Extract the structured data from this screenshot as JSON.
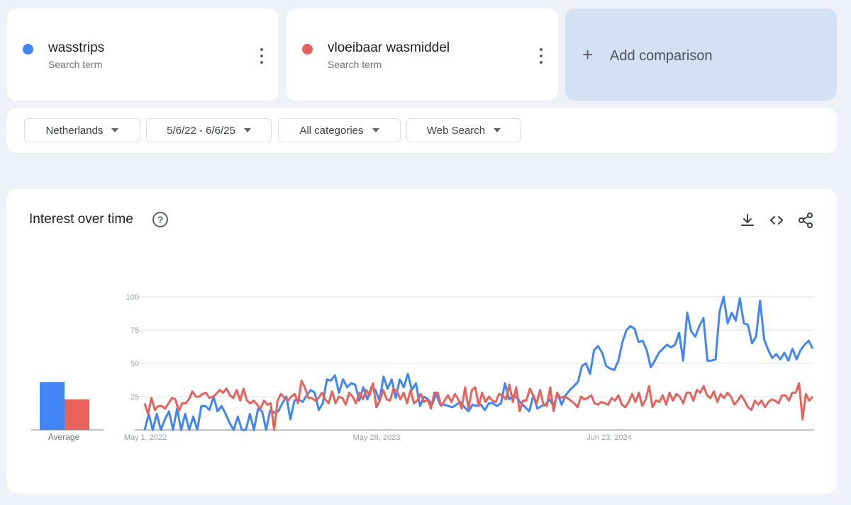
{
  "terms": [
    {
      "name": "wasstrips",
      "type": "Search term",
      "color": "#4285f4"
    },
    {
      "name": "vloeibaar wasmiddel",
      "type": "Search term",
      "color": "#e8625c"
    }
  ],
  "add_comparison": {
    "label": "Add comparison",
    "icon": "plus-icon"
  },
  "filters": {
    "region": "Netherlands",
    "date_range": "5/6/22 - 6/6/25",
    "category": "All categories",
    "search_type": "Web Search"
  },
  "chart_section": {
    "title": "Interest over time",
    "icons": [
      "help-icon",
      "download-icon",
      "embed-icon",
      "share-icon"
    ]
  },
  "chart_data": {
    "type": "line",
    "title": "",
    "xlabel": "",
    "ylabel": "",
    "ylim": [
      0,
      100
    ],
    "yticks": [
      25,
      50,
      75,
      100
    ],
    "xticks": [
      "May 1, 2022",
      "May 28, 2023",
      "Jun 23, 2024"
    ],
    "grid": true,
    "average": {
      "label": "Average",
      "values": [
        {
          "name": "wasstrips",
          "value": 36
        },
        {
          "name": "vloeibaar wasmiddel",
          "value": 23
        }
      ]
    },
    "series": [
      {
        "name": "wasstrips",
        "color": "#4285f4",
        "values": [
          0,
          12,
          0,
          12,
          0,
          8,
          14,
          0,
          16,
          0,
          12,
          0,
          10,
          0,
          18,
          18,
          15,
          25,
          14,
          18,
          12,
          5,
          0,
          10,
          0,
          0,
          12,
          0,
          16,
          14,
          0,
          15,
          13,
          14,
          20,
          25,
          8,
          22,
          23,
          21,
          26,
          30,
          28,
          15,
          20,
          38,
          37,
          41,
          28,
          38,
          32,
          35,
          34,
          22,
          32,
          23,
          32,
          30,
          22,
          40,
          31,
          38,
          24,
          38,
          32,
          42,
          30,
          35,
          18,
          25,
          23,
          19,
          27,
          19,
          19,
          18,
          17,
          19,
          21,
          17,
          14,
          19,
          18,
          19,
          15,
          20,
          20,
          18,
          20,
          35,
          23,
          26,
          24,
          20,
          17,
          14,
          26,
          16,
          18,
          19,
          23,
          18,
          27,
          19,
          26,
          30,
          33,
          36,
          48,
          50,
          42,
          60,
          63,
          58,
          48,
          46,
          45,
          52,
          66,
          75,
          78,
          76,
          66,
          67,
          60,
          47,
          52,
          58,
          61,
          64,
          62,
          64,
          73,
          52,
          88,
          74,
          70,
          78,
          84,
          52,
          52,
          53,
          89,
          100,
          80,
          88,
          82,
          99,
          80,
          79,
          65,
          70,
          97,
          68,
          60,
          54,
          57,
          53,
          58,
          52,
          61,
          53,
          60,
          64,
          67,
          61
        ],
        "x": [
          0,
          1,
          2,
          3,
          4,
          5,
          6,
          7,
          8,
          9,
          10,
          11,
          12,
          13,
          14,
          15,
          16,
          17,
          18,
          19,
          20,
          21,
          22,
          23,
          24,
          25,
          26,
          27,
          28,
          29,
          30,
          31,
          32,
          33,
          34,
          35,
          36,
          37,
          38,
          39,
          40,
          41,
          42,
          43,
          44,
          45,
          46,
          47,
          48,
          49,
          50,
          51,
          52,
          53,
          54,
          55,
          56,
          57,
          58,
          59,
          60,
          61,
          62,
          63,
          64,
          65,
          66,
          67,
          68,
          69,
          70,
          71,
          72,
          73,
          74,
          75,
          76,
          77,
          78,
          79,
          80,
          81,
          82,
          83,
          84,
          85,
          86,
          87,
          88,
          89,
          90,
          91,
          92,
          93,
          94,
          95,
          96,
          97,
          98,
          99,
          100,
          101,
          102,
          103,
          104,
          105,
          106,
          107,
          108,
          109,
          110,
          111,
          112,
          113,
          114,
          115,
          116,
          117,
          118,
          119,
          120,
          121,
          122,
          123,
          124,
          125,
          126,
          127,
          128,
          129,
          130,
          131,
          132,
          133,
          134,
          135,
          136,
          137,
          138,
          139,
          140,
          141,
          142,
          143,
          144,
          145,
          146,
          147,
          148,
          149,
          150,
          151,
          152,
          153,
          154,
          155,
          156,
          157,
          158,
          159,
          160,
          161,
          162,
          163,
          164,
          165
        ]
      },
      {
        "name": "vloeibaar wasmiddel",
        "color": "#e8625c",
        "values": [
          20,
          12,
          24,
          15,
          18,
          18,
          16,
          20,
          24,
          23,
          14,
          20,
          20,
          23,
          29,
          25,
          25,
          27,
          28,
          24,
          25,
          27,
          30,
          28,
          31,
          26,
          24,
          30,
          22,
          31,
          22,
          20,
          22,
          19,
          16,
          22,
          19,
          20,
          0,
          22,
          27,
          24,
          22,
          25,
          27,
          20,
          37,
          32,
          24,
          24,
          22,
          24,
          28,
          23,
          20,
          29,
          20,
          25,
          24,
          19,
          28,
          25,
          20,
          28,
          23,
          30,
          26,
          35,
          17,
          22,
          30,
          23,
          22,
          31,
          29,
          23,
          28,
          20,
          30,
          20,
          22,
          27,
          21,
          23,
          16,
          28,
          28,
          18,
          22,
          26,
          21,
          27,
          23,
          16,
          32,
          16,
          30,
          32,
          18,
          28,
          21,
          25,
          22,
          21,
          27,
          26,
          23,
          34,
          21,
          32,
          14,
          22,
          22,
          31,
          26,
          20,
          30,
          19,
          18,
          32,
          14,
          28,
          24,
          25,
          24,
          22,
          20,
          17,
          25,
          23,
          24,
          26,
          20,
          19,
          21,
          20,
          19,
          24,
          22,
          26,
          19,
          17,
          21,
          27,
          21,
          28,
          18,
          23,
          33,
          17,
          22,
          21,
          26,
          19,
          28,
          22,
          27,
          25,
          20,
          28,
          28,
          22,
          30,
          28,
          33,
          26,
          24,
          29,
          21,
          27,
          24,
          28,
          25,
          19,
          22,
          26,
          22,
          17,
          15,
          22,
          19,
          22,
          17,
          21,
          23,
          22,
          20,
          26,
          26,
          22,
          28,
          28,
          35,
          8,
          27,
          22,
          25
        ]
      }
    ]
  }
}
